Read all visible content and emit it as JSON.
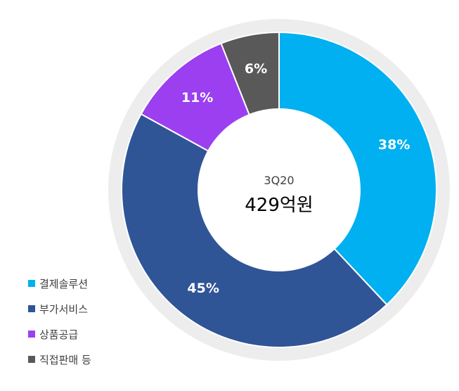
{
  "chart_data": {
    "type": "pie",
    "style": "donut",
    "center_label": "3Q20",
    "center_value": "429억원",
    "categories": [
      "결제솔루션",
      "부가서비스",
      "상품공급",
      "직접판매 등"
    ],
    "values": [
      38,
      45,
      11,
      6
    ],
    "value_labels": [
      "38%",
      "45%",
      "11%",
      "6%"
    ],
    "colors": [
      "#00B0F0",
      "#2F5597",
      "#9B3FF0",
      "#595959"
    ],
    "legend_position": "bottom-left"
  }
}
